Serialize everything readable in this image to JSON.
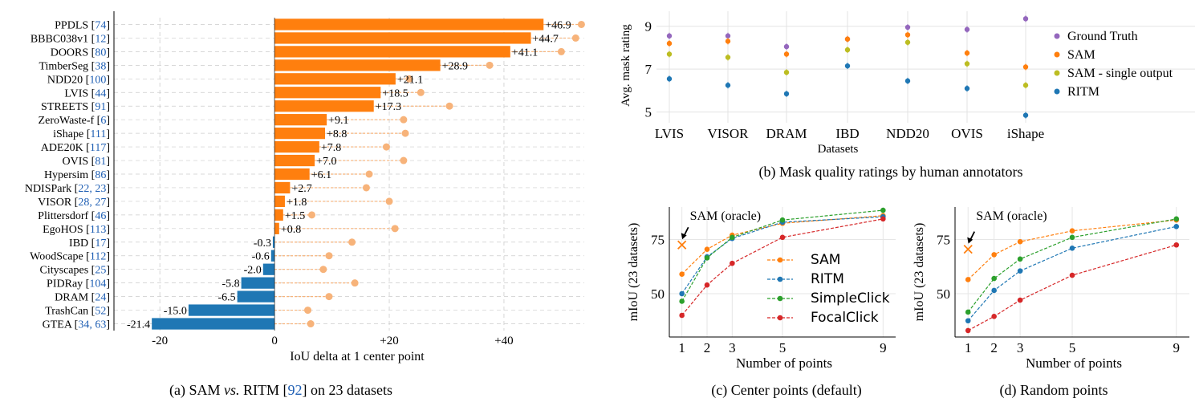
{
  "colors": {
    "orange": "#ff7f0e",
    "blue": "#1f77b4",
    "green": "#2ca02c",
    "red": "#d62728",
    "purple": "#9467bd",
    "olive": "#bcbd22",
    "light_orange": "#f7b37a",
    "citation_blue": "#1f5fb4"
  },
  "chart_data": [
    {
      "id": "a",
      "type": "bar",
      "orientation": "horizontal",
      "caption": "(a) SAM vs. RITM [92] on 23 datasets",
      "caption_parts": {
        "pre": "(a) SAM ",
        "vs": "vs.",
        "mid": " RITM [",
        "cite": "92",
        "post": "] on 23 datasets"
      },
      "xlabel": "IoU delta at 1 center point",
      "xlim": [
        -28,
        54
      ],
      "xticks": [
        -20,
        0,
        20,
        40
      ],
      "xtick_labels": [
        "-20",
        "0",
        "+20",
        "+40"
      ],
      "grid": true,
      "categories": [
        {
          "name": "PPDLS",
          "cite": "74"
        },
        {
          "name": "BBBC038v1",
          "cite": "12"
        },
        {
          "name": "DOORS",
          "cite": "80"
        },
        {
          "name": "TimberSeg",
          "cite": "38"
        },
        {
          "name": "NDD20",
          "cite": "100"
        },
        {
          "name": "LVIS",
          "cite": "44"
        },
        {
          "name": "STREETS",
          "cite": "91"
        },
        {
          "name": "ZeroWaste-f",
          "cite": "6"
        },
        {
          "name": "iShape",
          "cite": "111"
        },
        {
          "name": "ADE20K",
          "cite": "117"
        },
        {
          "name": "OVIS",
          "cite": "81"
        },
        {
          "name": "Hypersim",
          "cite": "86"
        },
        {
          "name": "NDISPark",
          "cite": "22, 23"
        },
        {
          "name": "VISOR",
          "cite": "28, 27"
        },
        {
          "name": "Plittersdorf",
          "cite": "46"
        },
        {
          "name": "EgoHOS",
          "cite": "113"
        },
        {
          "name": "IBD",
          "cite": "17"
        },
        {
          "name": "WoodScape",
          "cite": "112"
        },
        {
          "name": "Cityscapes",
          "cite": "25"
        },
        {
          "name": "PIDRay",
          "cite": "104"
        },
        {
          "name": "DRAM",
          "cite": "24"
        },
        {
          "name": "TrashCan",
          "cite": "52"
        },
        {
          "name": "GTEA",
          "cite": "34, 63"
        }
      ],
      "values": [
        46.9,
        44.7,
        41.1,
        28.9,
        21.1,
        18.5,
        17.3,
        9.1,
        8.8,
        7.8,
        7.0,
        6.1,
        2.7,
        1.8,
        1.5,
        0.8,
        -0.3,
        -0.6,
        -2.0,
        -5.8,
        -6.5,
        -15.0,
        -21.4
      ],
      "value_labels": [
        "+46.9",
        "+44.7",
        "+41.1",
        "+28.9",
        "+21.1",
        "+18.5",
        "+17.3",
        "+9.1",
        "+8.8",
        "+7.8",
        "+7.0",
        "+6.1",
        "+2.7",
        "+1.8",
        "+1.5",
        "+0.8",
        "-0.3",
        "-0.6",
        "-2.0",
        "-5.8",
        "-6.5",
        "-15.0",
        "-21.4"
      ],
      "oracle_values": [
        53.5,
        52.5,
        50.0,
        37.5,
        23.5,
        25.5,
        30.5,
        22.5,
        22.8,
        19.5,
        22.5,
        16.5,
        16.0,
        20.0,
        6.5,
        21.0,
        13.5,
        9.5,
        8.5,
        14.0,
        9.5,
        5.8,
        6.3
      ]
    },
    {
      "id": "b",
      "type": "scatter",
      "caption": "(b) Mask quality ratings by human annotators",
      "xlabel": "Datasets",
      "ylabel": "Avg. mask rating",
      "categories": [
        "LVIS",
        "VISOR",
        "DRAM",
        "IBD",
        "NDD20",
        "OVIS",
        "iShape"
      ],
      "ylim": [
        4.5,
        9.7
      ],
      "yticks": [
        5,
        7,
        9
      ],
      "grid": true,
      "legend_position": "right",
      "series": [
        {
          "name": "Ground Truth",
          "color_key": "purple",
          "values": [
            8.55,
            8.55,
            8.05,
            8.4,
            8.95,
            8.85,
            9.35
          ]
        },
        {
          "name": "SAM",
          "color_key": "orange",
          "values": [
            8.2,
            8.3,
            7.7,
            8.4,
            8.6,
            7.75,
            7.1
          ]
        },
        {
          "name": "SAM - single output",
          "color_key": "olive",
          "values": [
            7.7,
            7.55,
            6.85,
            7.9,
            8.25,
            7.25,
            6.25
          ]
        },
        {
          "name": "RITM",
          "color_key": "blue",
          "values": [
            6.55,
            6.25,
            5.85,
            7.15,
            6.45,
            6.1,
            4.85
          ]
        }
      ]
    },
    {
      "id": "c",
      "type": "line",
      "caption": "(c) Center points (default)",
      "xlabel": "Number of points",
      "ylabel": "mIoU (23 datasets)",
      "x": [
        1,
        2,
        3,
        5,
        9
      ],
      "xlim": [
        0.5,
        9.5
      ],
      "ylim": [
        30,
        90
      ],
      "yticks": [
        50,
        75
      ],
      "grid": true,
      "legend_position": "center-right",
      "annotation": {
        "text": "SAM (oracle)",
        "x": 1,
        "y": 72.5
      },
      "series": [
        {
          "name": "SAM",
          "color_key": "orange",
          "values": [
            59,
            70.5,
            77,
            82.5,
            86
          ]
        },
        {
          "name": "RITM",
          "color_key": "blue",
          "values": [
            50,
            67,
            75.5,
            83,
            85.5
          ]
        },
        {
          "name": "SimpleClick",
          "color_key": "green",
          "values": [
            46.5,
            66.5,
            76,
            84,
            88.5
          ]
        },
        {
          "name": "FocalClick",
          "color_key": "red",
          "values": [
            40,
            54,
            64,
            76,
            84.5
          ]
        }
      ]
    },
    {
      "id": "d",
      "type": "line",
      "caption": "(d) Random points",
      "xlabel": "Number of points",
      "ylabel": "mIoU (23 datasets)",
      "x": [
        1,
        2,
        3,
        5,
        9
      ],
      "xlim": [
        0.5,
        9.5
      ],
      "ylim": [
        30,
        90
      ],
      "yticks": [
        50,
        75
      ],
      "grid": true,
      "annotation": {
        "text": "SAM (oracle)",
        "x": 1,
        "y": 70.5
      },
      "series": [
        {
          "name": "SAM",
          "color_key": "orange",
          "values": [
            56.5,
            68,
            74,
            79,
            84
          ]
        },
        {
          "name": "RITM",
          "color_key": "blue",
          "values": [
            37.5,
            51.5,
            60.5,
            71,
            81
          ]
        },
        {
          "name": "SimpleClick",
          "color_key": "green",
          "values": [
            41.5,
            57,
            66,
            76,
            84.5
          ]
        },
        {
          "name": "FocalClick",
          "color_key": "red",
          "values": [
            33,
            39.5,
            47,
            58.5,
            72.5
          ]
        }
      ]
    }
  ]
}
